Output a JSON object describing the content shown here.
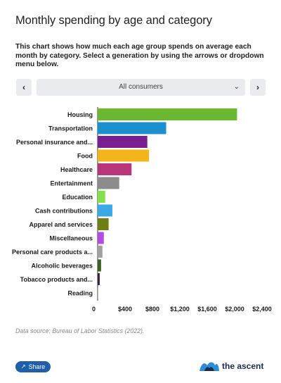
{
  "header": {
    "title": "Monthly spending by age and category",
    "description": "This chart shows how much each age group spends on average each month by category. Select a generation by using the arrows or dropdown menu below."
  },
  "controls": {
    "prev_label": "‹",
    "next_label": "›",
    "selected": "All consumers",
    "dropdown_chevron": "⌄"
  },
  "chart_data": {
    "type": "bar",
    "orientation": "horizontal",
    "categories": [
      "Housing",
      "Transportation",
      "Personal insurance and...",
      "Food",
      "Healthcare",
      "Entertainment",
      "Education",
      "Cash contributions",
      "Apparel and services",
      "Miscellaneous",
      "Personal care products a...",
      "Alcoholic beverages",
      "Tobacco products and...",
      "Reading"
    ],
    "values": [
      2035,
      1000,
      725,
      750,
      495,
      315,
      110,
      215,
      160,
      90,
      70,
      50,
      30,
      10
    ],
    "colors": [
      "#6ab82f",
      "#1c8fcf",
      "#7a1f91",
      "#f2b61b",
      "#b8357a",
      "#8c8c8c",
      "#86e04a",
      "#3aa9e6",
      "#6e7e12",
      "#b44be0",
      "#a0a0a0",
      "#3d5e1c",
      "#3a2140",
      "#b1b1b1"
    ],
    "xlim": [
      0,
      2400
    ],
    "xticks": [
      "0",
      "$400",
      "$800",
      "$1,200",
      "$1,600",
      "$2,000",
      "$2,400"
    ],
    "xtick_values": [
      0,
      400,
      800,
      1200,
      1600,
      2000,
      2400
    ],
    "grid": false
  },
  "source": "Data source: Bureau of Labor Statistics (2022).",
  "footer": {
    "share_label": "Share",
    "share_icon": "share-icon",
    "brand_name": "the ascent"
  }
}
